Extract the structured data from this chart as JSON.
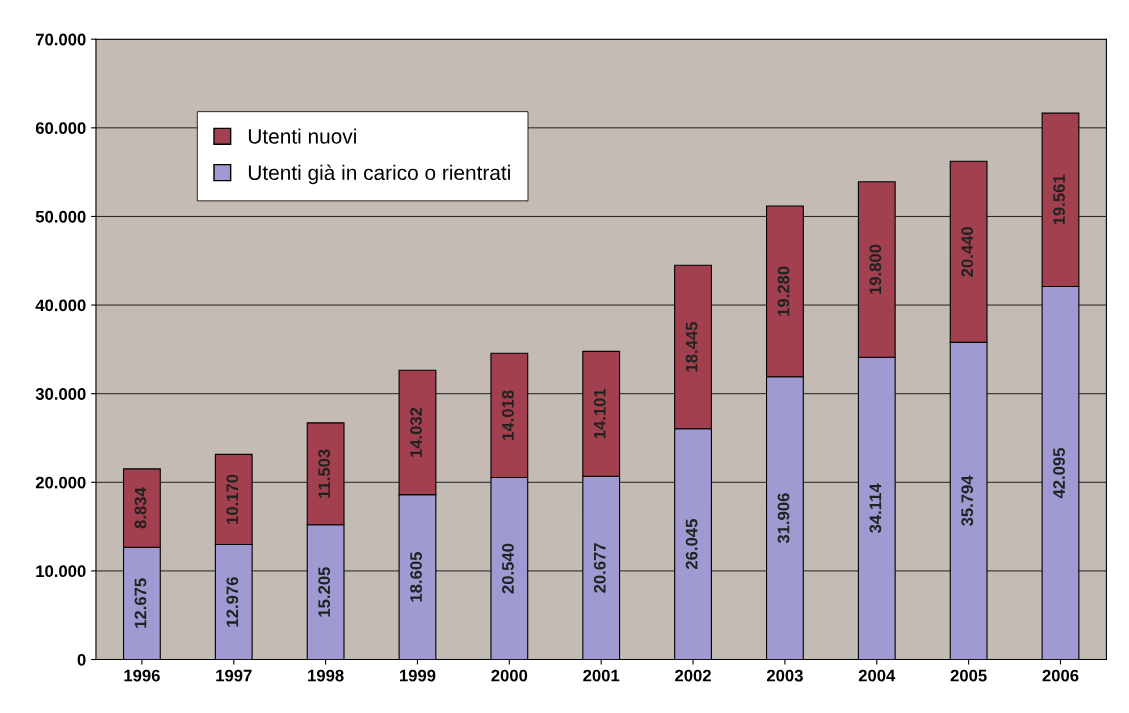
{
  "chart_data": {
    "type": "bar",
    "stacked": true,
    "categories": [
      "1996",
      "1997",
      "1998",
      "1999",
      "2000",
      "2001",
      "2002",
      "2003",
      "2004",
      "2005",
      "2006"
    ],
    "series": [
      {
        "name": "Utenti già in carico o rientrati",
        "color": "#9f9bd2",
        "values": [
          12675,
          12976,
          15205,
          18605,
          20540,
          20677,
          26045,
          31906,
          34114,
          35794,
          42095
        ],
        "value_labels": [
          "12.675",
          "12.976",
          "15.205",
          "18.605",
          "20.540",
          "20.677",
          "26.045",
          "31.906",
          "34.114",
          "35.794",
          "42.095"
        ]
      },
      {
        "name": "Utenti nuovi",
        "color": "#a3404f",
        "values": [
          8834,
          10170,
          11503,
          14032,
          14018,
          14101,
          18445,
          19280,
          19800,
          20440,
          19561
        ],
        "value_labels": [
          "8.834",
          "10.170",
          "11.503",
          "14.032",
          "14.018",
          "14.101",
          "18.445",
          "19.280",
          "19.800",
          "20.440",
          "19.561"
        ]
      }
    ],
    "ylim": [
      0,
      70000
    ],
    "yticks": [
      {
        "value": 0,
        "label": "0"
      },
      {
        "value": 10000,
        "label": "10.000"
      },
      {
        "value": 20000,
        "label": "20.000"
      },
      {
        "value": 30000,
        "label": "30.000"
      },
      {
        "value": 40000,
        "label": "40.000"
      },
      {
        "value": 50000,
        "label": "50.000"
      },
      {
        "value": 60000,
        "label": "60.000"
      },
      {
        "value": 70000,
        "label": "70.000"
      }
    ],
    "grid": "y",
    "legend": "top left"
  }
}
